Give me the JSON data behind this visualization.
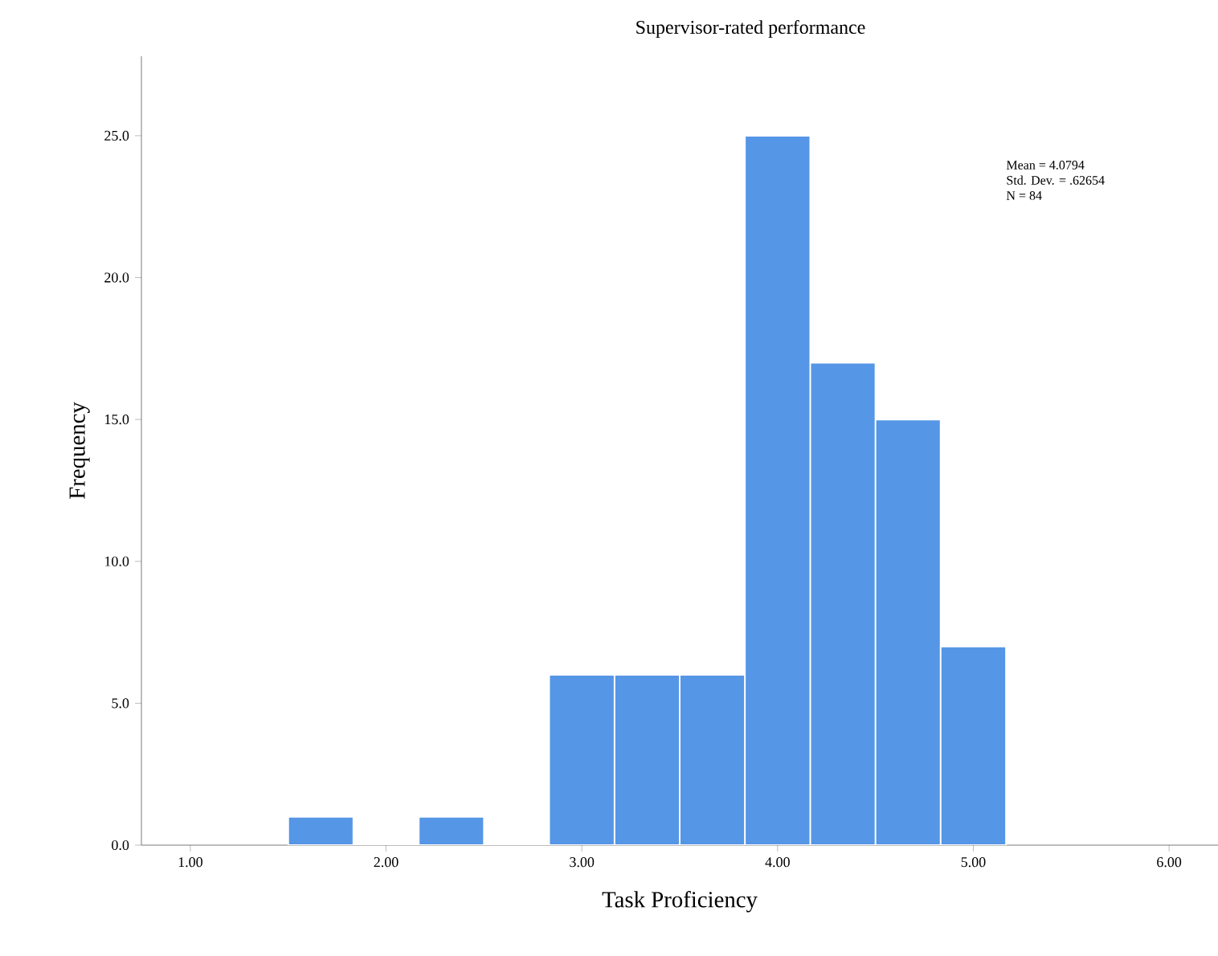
{
  "chart_data": {
    "type": "histogram",
    "title": "Supervisor-rated performance",
    "xlabel": "Task Proficiency",
    "ylabel": "Frequency",
    "bins": [
      1.5,
      1.833,
      2.167,
      2.5,
      2.833,
      3.167,
      3.5,
      3.833,
      4.167,
      4.5,
      4.833,
      5.167
    ],
    "values": [
      1,
      0,
      1,
      0,
      6,
      6,
      6,
      25,
      17,
      15,
      7
    ],
    "color": "#5596e6",
    "xlim": [
      0.75,
      6.25
    ],
    "ylim": [
      0,
      27.8
    ],
    "xticks": [
      {
        "value": 1,
        "label": "1.00"
      },
      {
        "value": 2,
        "label": "2.00"
      },
      {
        "value": 3,
        "label": "3.00"
      },
      {
        "value": 4,
        "label": "4.00"
      },
      {
        "value": 5,
        "label": "5.00"
      },
      {
        "value": 6,
        "label": "6.00"
      }
    ],
    "yticks": [
      {
        "value": 0,
        "label": "0.0"
      },
      {
        "value": 5,
        "label": "5.0"
      },
      {
        "value": 10,
        "label": "10.0"
      },
      {
        "value": 15,
        "label": "15.0"
      },
      {
        "value": 20,
        "label": "20.0"
      },
      {
        "value": 25,
        "label": "25.0"
      }
    ],
    "annotations": [
      "Mean = 4.0794",
      "Std. Dev. = .62654",
      "N = 84"
    ],
    "grid": false
  }
}
